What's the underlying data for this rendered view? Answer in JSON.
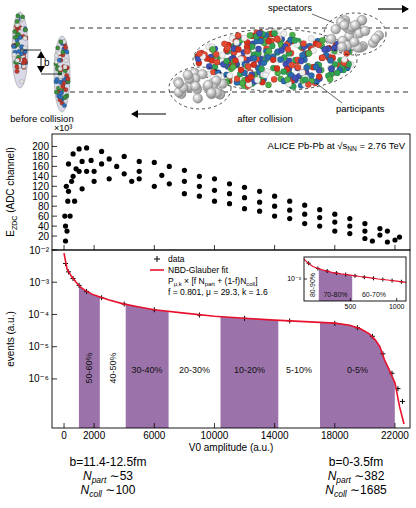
{
  "diagram": {
    "labels": {
      "spectators": "spectators",
      "participants": "participants",
      "before": "before collision",
      "after": "after collision",
      "impact": "b"
    }
  },
  "chart_data": [
    {
      "type": "scatter",
      "y_label": [
        {
          "text": "E"
        },
        {
          "sub": "ZDC"
        },
        {
          "text": " (ADC channel)"
        }
      ],
      "y_multiplier": "×10³",
      "annotation": [
        {
          "text": "ALICE Pb-Pb at √s"
        },
        {
          "sub": "NN"
        },
        {
          "text": " = 2.76 TeV"
        }
      ],
      "x": [
        50,
        150,
        300,
        600,
        1000,
        1500,
        2500,
        4000,
        6000,
        8000,
        10000,
        12000,
        14000,
        16000,
        18000,
        20000,
        21500,
        22300,
        100,
        200,
        400,
        700,
        1200,
        2000,
        3000,
        4500,
        6000,
        8000,
        10000,
        12000,
        14000,
        16000,
        18000,
        20000,
        21500,
        100,
        250,
        500,
        800,
        1200,
        1800,
        2500,
        3500,
        5000,
        6500,
        8000,
        9000,
        10000,
        11000,
        12000,
        13000,
        14000,
        15000,
        16000,
        17000,
        18000,
        19000,
        20000,
        21000,
        22000,
        300,
        600,
        1000,
        1500,
        2000,
        3000,
        4000,
        5000,
        5000,
        7000,
        7000,
        9000,
        9000,
        11000,
        11000,
        13000,
        13000,
        15000,
        15000,
        17000,
        17000,
        19000,
        19000,
        21000,
        20500
      ],
      "values": [
        60,
        120,
        165,
        185,
        195,
        197,
        190,
        180,
        168,
        152,
        135,
        118,
        100,
        82,
        64,
        45,
        30,
        18,
        10,
        30,
        60,
        90,
        115,
        130,
        135,
        130,
        120,
        105,
        90,
        75,
        60,
        45,
        30,
        15,
        8,
        40,
        90,
        130,
        155,
        170,
        172,
        165,
        160,
        150,
        142,
        130,
        120,
        112,
        105,
        97,
        88,
        80,
        72,
        64,
        57,
        48,
        40,
        30,
        22,
        12,
        110,
        140,
        150,
        150,
        150,
        175,
        145,
        170,
        135,
        160,
        125,
        140,
        100,
        125,
        85,
        110,
        70,
        90,
        55,
        73,
        40,
        55,
        25,
        35,
        10
      ],
      "color": "#000000",
      "marker": "dot",
      "xlim": [
        -800,
        23000
      ],
      "ylim": [
        -8,
        225
      ],
      "xticks": [
        0,
        2000,
        6000,
        10000,
        14000,
        18000,
        22000
      ],
      "yticks": [
        20,
        40,
        60,
        80,
        100,
        120,
        140,
        160,
        180,
        200
      ],
      "tick_labels": "y"
    },
    {
      "type": "line",
      "x_label": "V0 amplitude (a.u.)",
      "y_label": "events (a.u.)",
      "log": "y",
      "xlim": [
        -800,
        23000
      ],
      "ylim": [
        3e-08,
        0.01
      ],
      "xticks": [
        0,
        2000,
        6000,
        10000,
        14000,
        18000,
        22000
      ],
      "yticks": [
        {
          "value": 0.01,
          "label": "10⁻²"
        },
        {
          "value": 0.001,
          "label": "10⁻³"
        },
        {
          "value": 0.0001,
          "label": "10⁻⁴"
        },
        {
          "value": 1e-05,
          "label": "10⁻⁵"
        },
        {
          "value": 1e-06,
          "label": "10⁻⁶"
        }
      ],
      "series": [
        {
          "name": "data",
          "type": "scatter",
          "marker": "cross",
          "color": "#000000",
          "x": [
            100,
            300,
            600,
            1000,
            1500,
            2500,
            4000,
            6000,
            9000,
            12000,
            15000,
            18000,
            19500,
            20500,
            21200,
            21800,
            22200,
            22500
          ],
          "values": [
            0.0038,
            0.0021,
            0.0013,
            0.0008,
            0.00052,
            0.00033,
            0.00021,
            0.00014,
            9.6e-05,
            7.6e-05,
            6.3e-05,
            5.3e-05,
            3.9e-05,
            2.1e-05,
            6e-06,
            1.5e-06,
            5e-07,
            2e-07
          ]
        },
        {
          "name": "NBD-Glauber fit",
          "type": "line",
          "line_style": "solid",
          "color": "#e8112d",
          "x": [
            0,
            200,
            500,
            800,
            1100,
            1450,
            2000,
            3000,
            4000,
            5000,
            6000,
            8000,
            10000,
            12000,
            14000,
            16000,
            18000,
            19000,
            19700,
            20300,
            20700,
            21000,
            21300,
            21600,
            22000,
            22300,
            22600
          ],
          "values": [
            0.008,
            0.0026,
            0.0015,
            0.001,
            0.0007,
            0.00054,
            0.0004,
            0.00028,
            0.00021,
            0.00017,
            0.00014,
            0.00011,
            8.8e-05,
            7.6e-05,
            6.7e-05,
            6e-05,
            5.4e-05,
            4.6e-05,
            3.6e-05,
            2.5e-05,
            1.6e-05,
            1e-05,
            4e-06,
            2e-06,
            7.5e-07,
            1.4e-07,
            4e-08
          ]
        }
      ],
      "legend": "top",
      "legend_text": [
        [
          {
            "text": "P"
          },
          {
            "sub": "μ,k"
          },
          {
            "text": " × [f N"
          },
          {
            "sub": "part"
          },
          {
            "text": " + (1-f)N"
          },
          {
            "sub": "coll"
          },
          {
            "text": "]"
          }
        ],
        [
          {
            "text": "f = 0.801, μ = 29.3, k = 1.6"
          }
        ]
      ],
      "bands": [
        {
          "label": "50-60%",
          "range": [
            990,
            2380
          ],
          "color": "#9b72aa"
        },
        {
          "label": "40-50%",
          "range": [
            2380,
            4100
          ]
        },
        {
          "label": "30-40%",
          "range": [
            4100,
            6950
          ],
          "color": "#9b72aa"
        },
        {
          "label": "20-30%",
          "range": [
            6950,
            10400
          ]
        },
        {
          "label": "10-20%",
          "range": [
            10400,
            14240
          ],
          "color": "#9b72aa"
        },
        {
          "label": "5-10%",
          "range": [
            14240,
            17020
          ]
        },
        {
          "label": "0-5%",
          "range": [
            17020,
            21990
          ],
          "color": "#9b72aa"
        }
      ]
    },
    {
      "type": "line",
      "log": "y",
      "xlim": [
        0,
        1100
      ],
      "ylim": [
        0.0001,
        0.01
      ],
      "xticks": [
        500,
        1000
      ],
      "yticks": [
        {
          "value": 0.001,
          "label": "10⁻³"
        }
      ],
      "series": [
        {
          "type": "scatter",
          "marker": "cross",
          "color": "#000000",
          "x": [
            50,
            150,
            250,
            350,
            450,
            550,
            650,
            750,
            850,
            950,
            1050
          ],
          "values": [
            0.0052,
            0.003,
            0.0023,
            0.00185,
            0.0016,
            0.0014,
            0.0012,
            0.00107,
            0.00095,
            0.00085,
            0.00075
          ]
        },
        {
          "type": "line",
          "line_style": "solid",
          "color": "#e8112d",
          "x": [
            0,
            50,
            100,
            200,
            300,
            400,
            500,
            600,
            700,
            800,
            900,
            1000,
            1100
          ],
          "values": [
            0.008,
            0.005,
            0.0036,
            0.0026,
            0.002,
            0.0017,
            0.0015,
            0.0013,
            0.00115,
            0.001,
            0.0009,
            0.0008,
            0.0007
          ]
        }
      ],
      "bands": [
        {
          "label": "80-90%",
          "range": [
            20,
            160
          ]
        },
        {
          "label": "70-80%",
          "range": [
            160,
            520
          ],
          "color": "#9b72aa"
        },
        {
          "label": "60-70%",
          "range": [
            520,
            990
          ]
        }
      ]
    }
  ],
  "notes": [
    {
      "b": "b=11.4-12.5fm",
      "npart": {
        "symbol": "N",
        "sub": "part",
        "value": " ∼53"
      },
      "ncoll": {
        "symbol": "N",
        "sub": "coll",
        "value": " ∼100"
      }
    },
    {
      "b": "b=0-3.5fm",
      "npart": {
        "symbol": "N",
        "sub": "part",
        "value": " ∼382"
      },
      "ncoll": {
        "symbol": "N",
        "sub": "coll",
        "value": " ∼1685"
      }
    }
  ]
}
